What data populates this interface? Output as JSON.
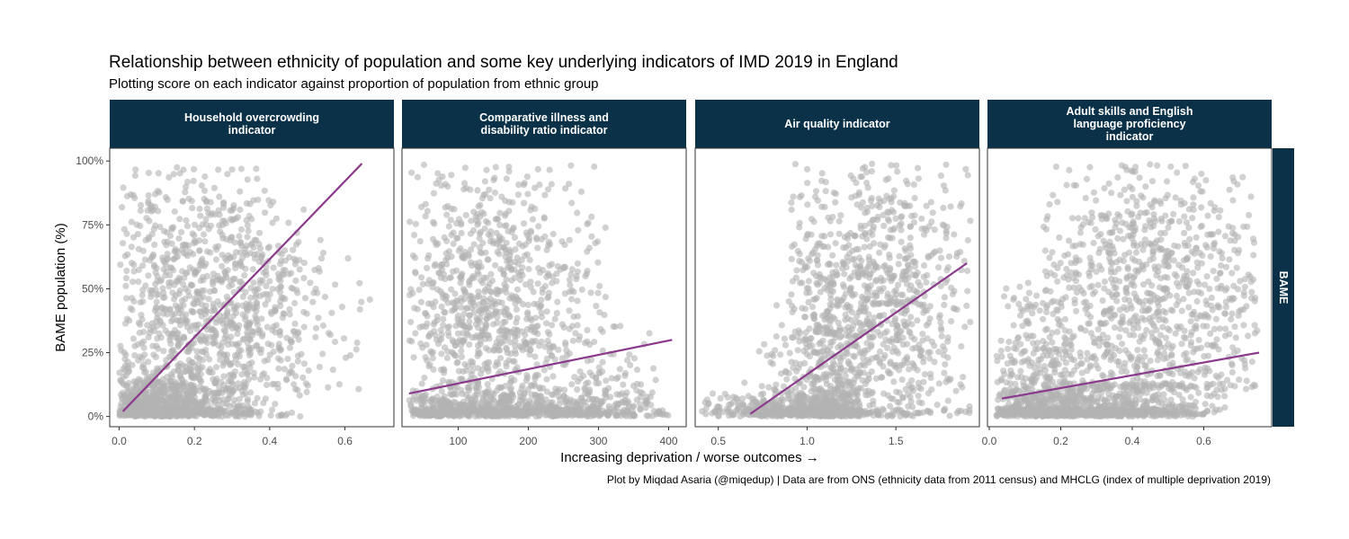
{
  "chart_data": {
    "type": "scatter",
    "title": "Relationship between ethnicity of population and some key underlying indicators of IMD 2019 in England",
    "subtitle": "Plotting score on each indicator against proportion of population from ethnic group",
    "xlabel": "Increasing deprivation / worse outcomes →",
    "ylabel": "BAME population (%)",
    "caption": "Plot by Miqdad Asaria (@miqedup) | Data are from ONS (ethnicity data from 2011 census) and MHCLG (index of multiple deprivation 2019)",
    "row_strip": "BAME",
    "y_ticks": [
      {
        "value": 0,
        "label": "0%"
      },
      {
        "value": 25,
        "label": "25%"
      },
      {
        "value": 50,
        "label": "50%"
      },
      {
        "value": 75,
        "label": "75%"
      },
      {
        "value": 100,
        "label": "100%"
      }
    ],
    "ylim": [
      -4,
      105
    ],
    "grid": false,
    "colors": {
      "points": "#b3b3b3",
      "trend_line": "#8b3a8b",
      "strip_fill": "#0a3148",
      "strip_text": "#ffffff",
      "panel_border": "#333333"
    },
    "panels": [
      {
        "label_lines": [
          "Household overcrowding",
          "indicator"
        ],
        "xlim": [
          -0.025,
          0.73
        ],
        "x_ticks": [
          {
            "value": 0.0,
            "label": "0.0"
          },
          {
            "value": 0.2,
            "label": "0.2"
          },
          {
            "value": 0.4,
            "label": "0.4"
          },
          {
            "value": 0.6,
            "label": "0.6"
          }
        ],
        "trend": {
          "x": [
            0.01,
            0.645
          ],
          "y": [
            2,
            99
          ]
        },
        "cloud": [
          {
            "xr": [
              0.0,
              0.5
            ],
            "yr": [
              0,
              98
            ],
            "xc": 0.2,
            "yc": 40,
            "n": 1000
          },
          {
            "xr": [
              0.0,
              0.35
            ],
            "yr": [
              0,
              20
            ],
            "xc": 0.1,
            "yc": 5,
            "n": 650
          },
          {
            "xr": [
              0.25,
              0.68
            ],
            "yr": [
              10,
              70
            ],
            "xc": 0.4,
            "yc": 40,
            "n": 160
          }
        ]
      },
      {
        "label_lines": [
          "Comparative illness and",
          "disability ratio indicator"
        ],
        "xlim": [
          20,
          425
        ],
        "x_ticks": [
          {
            "value": 100,
            "label": "100"
          },
          {
            "value": 200,
            "label": "200"
          },
          {
            "value": 300,
            "label": "300"
          },
          {
            "value": 400,
            "label": "400"
          }
        ],
        "trend": {
          "x": [
            30,
            405
          ],
          "y": [
            9,
            30
          ]
        },
        "cloud": [
          {
            "xr": [
              30,
              310
            ],
            "yr": [
              0,
              99
            ],
            "xc": 140,
            "yc": 40,
            "n": 1000
          },
          {
            "xr": [
              30,
              400
            ],
            "yr": [
              0,
              15
            ],
            "xc": 150,
            "yc": 2,
            "n": 650
          },
          {
            "xr": [
              260,
              400
            ],
            "yr": [
              0,
              45
            ],
            "xc": 300,
            "yc": 10,
            "n": 100
          }
        ]
      },
      {
        "label_lines": [
          "Air quality indicator"
        ],
        "xlim": [
          0.37,
          1.97
        ],
        "x_ticks": [
          {
            "value": 0.5,
            "label": "0.5"
          },
          {
            "value": 1.0,
            "label": "1.0"
          },
          {
            "value": 1.5,
            "label": "1.5"
          }
        ],
        "trend": {
          "x": [
            0.68,
            1.9
          ],
          "y": [
            1,
            60
          ]
        },
        "cloud": [
          {
            "xr": [
              0.4,
              1.3
            ],
            "yr": [
              0,
              15
            ],
            "xc": 1.0,
            "yc": 2,
            "n": 450
          },
          {
            "xr": [
              0.9,
              1.92
            ],
            "yr": [
              0,
              99
            ],
            "xc": 1.35,
            "yc": 40,
            "n": 1000
          },
          {
            "xr": [
              0.7,
              1.3
            ],
            "yr": [
              0,
              50
            ],
            "xc": 1.1,
            "yc": 10,
            "n": 250
          }
        ]
      },
      {
        "label_lines": [
          "Adult skills and English",
          "language proficiency",
          "indicator"
        ],
        "xlim": [
          -0.005,
          0.79
        ],
        "x_ticks": [
          {
            "value": 0.0,
            "label": "0.0"
          },
          {
            "value": 0.2,
            "label": "0.2"
          },
          {
            "value": 0.4,
            "label": "0.4"
          },
          {
            "value": 0.6,
            "label": "0.6"
          }
        ],
        "trend": {
          "x": [
            0.035,
            0.755
          ],
          "y": [
            7,
            25
          ]
        },
        "cloud": [
          {
            "xr": [
              0.02,
              0.66
            ],
            "yr": [
              0,
              20
            ],
            "xc": 0.25,
            "yc": 2,
            "n": 800
          },
          {
            "xr": [
              0.15,
              0.75
            ],
            "yr": [
              10,
              99
            ],
            "xc": 0.45,
            "yc": 50,
            "n": 900
          },
          {
            "xr": [
              0.02,
              0.35
            ],
            "yr": [
              0,
              60
            ],
            "xc": 0.15,
            "yc": 15,
            "n": 300
          }
        ]
      }
    ]
  }
}
